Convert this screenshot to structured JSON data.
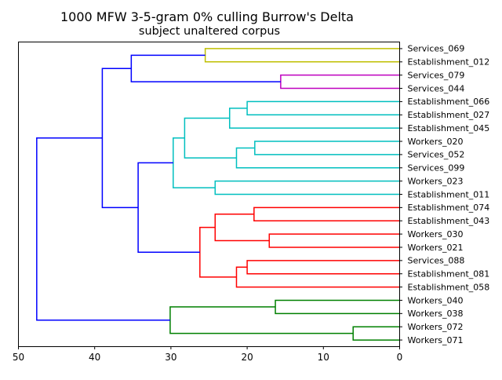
{
  "chart_data": {
    "type": "dendrogram",
    "title_lines": [
      "1000 MFW 3-5-gram 0% culling Burrow's Delta",
      "subject unaltered corpus"
    ],
    "orientation": "left",
    "xlim": [
      50,
      0
    ],
    "xticks": [
      50,
      40,
      30,
      20,
      10,
      0
    ],
    "xtick_labels": [
      "50",
      "40",
      "30",
      "20",
      "10",
      "0"
    ],
    "leaves": [
      "Services_069",
      "Establishment_012",
      "Services_079",
      "Services_044",
      "Establishment_066",
      "Establishment_027",
      "Establishment_045",
      "Workers_020",
      "Services_052",
      "Services_099",
      "Workers_023",
      "Establishment_011",
      "Establishment_074",
      "Establishment_043",
      "Workers_030",
      "Workers_021",
      "Services_088",
      "Establishment_081",
      "Establishment_058",
      "Workers_040",
      "Workers_038",
      "Workers_072",
      "Workers_071"
    ],
    "colors": {
      "olive": "#bfbf00",
      "magenta": "#bf00bf",
      "cyan": "#00bfbf",
      "red": "#ff0000",
      "green": "#008000",
      "blue": "#0000ff"
    },
    "merges": [
      {
        "id": "m1",
        "left": "L0",
        "right": "L1",
        "height": 25.5,
        "color": "olive"
      },
      {
        "id": "m2",
        "left": "L2",
        "right": "L3",
        "height": 15.6,
        "color": "magenta"
      },
      {
        "id": "m3",
        "left": "m1",
        "right": "m2",
        "height": 35.2,
        "color": "blue"
      },
      {
        "id": "m4",
        "left": "L4",
        "right": "L5",
        "height": 20.0,
        "color": "cyan"
      },
      {
        "id": "m5",
        "left": "m4",
        "right": "L6",
        "height": 22.3,
        "color": "cyan"
      },
      {
        "id": "m6",
        "left": "L7",
        "right": "L8",
        "height": 19.0,
        "color": "cyan"
      },
      {
        "id": "m7",
        "left": "m6",
        "right": "L9",
        "height": 21.4,
        "color": "cyan"
      },
      {
        "id": "m8",
        "left": "m5",
        "right": "m7",
        "height": 28.2,
        "color": "cyan"
      },
      {
        "id": "m9",
        "left": "L10",
        "right": "L11",
        "height": 24.2,
        "color": "cyan"
      },
      {
        "id": "m10",
        "left": "m8",
        "right": "m9",
        "height": 29.7,
        "color": "cyan"
      },
      {
        "id": "m11",
        "left": "L12",
        "right": "L13",
        "height": 19.1,
        "color": "red"
      },
      {
        "id": "m12",
        "left": "L14",
        "right": "L15",
        "height": 17.1,
        "color": "red"
      },
      {
        "id": "m13",
        "left": "m11",
        "right": "m12",
        "height": 24.2,
        "color": "red"
      },
      {
        "id": "m14",
        "left": "L16",
        "right": "L17",
        "height": 20.0,
        "color": "red"
      },
      {
        "id": "m15",
        "left": "m14",
        "right": "L18",
        "height": 21.4,
        "color": "red"
      },
      {
        "id": "m16",
        "left": "m13",
        "right": "m15",
        "height": 26.2,
        "color": "red"
      },
      {
        "id": "m17",
        "left": "m10",
        "right": "m16",
        "height": 34.3,
        "color": "blue"
      },
      {
        "id": "m18",
        "left": "m3",
        "right": "m17",
        "height": 39.0,
        "color": "blue"
      },
      {
        "id": "m19",
        "left": "L19",
        "right": "L20",
        "height": 16.3,
        "color": "green"
      },
      {
        "id": "m20",
        "left": "L21",
        "right": "L22",
        "height": 6.1,
        "color": "green"
      },
      {
        "id": "m21",
        "left": "m19",
        "right": "m20",
        "height": 30.1,
        "color": "green"
      },
      {
        "id": "m22",
        "left": "m18",
        "right": "m21",
        "height": 47.6,
        "color": "blue"
      }
    ]
  }
}
